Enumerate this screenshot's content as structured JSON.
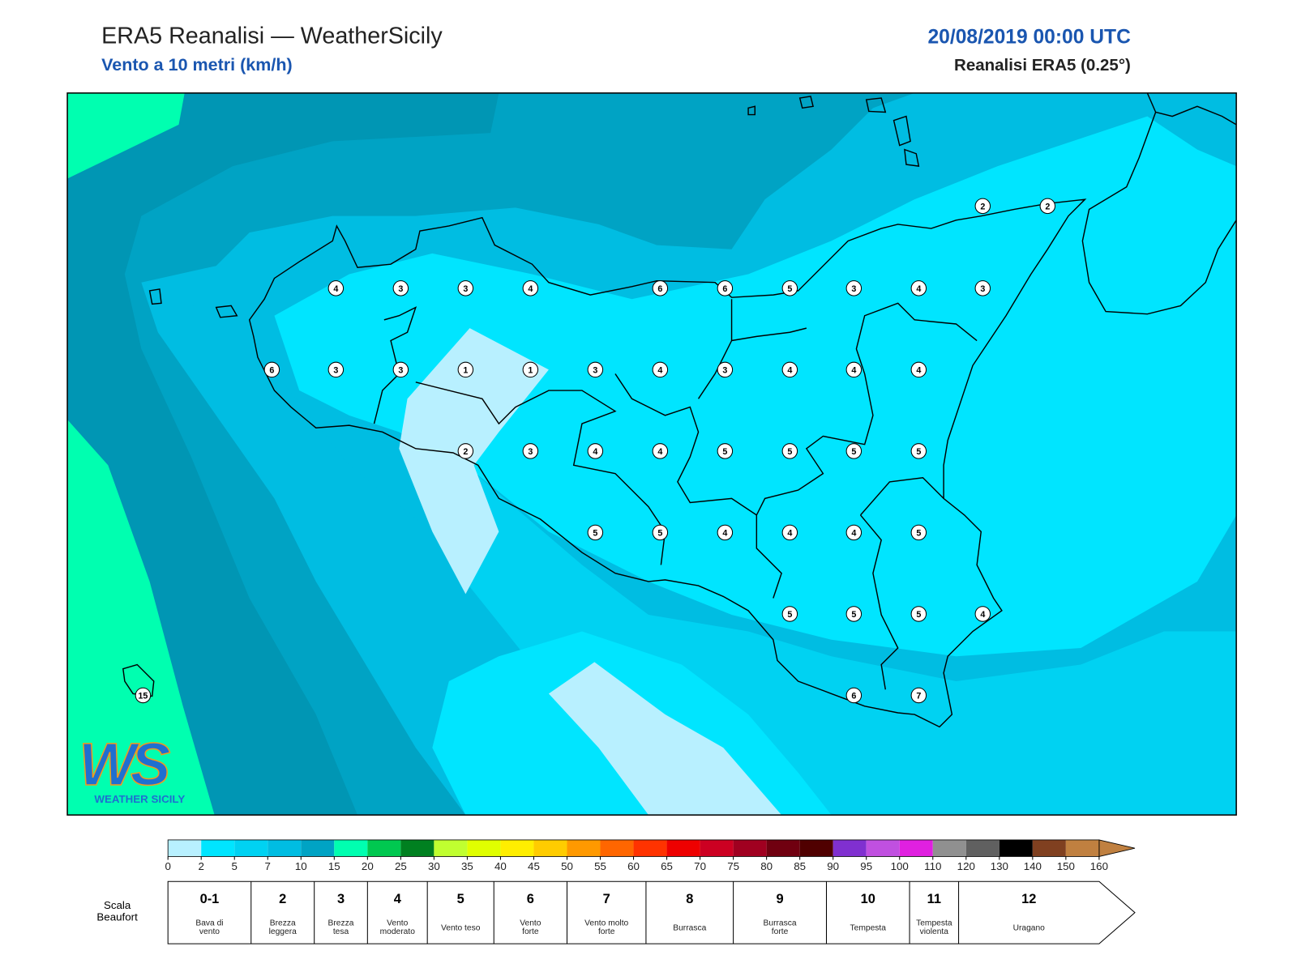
{
  "header": {
    "title": "ERA5 Reanalisi — WeatherSicily",
    "subtitle": "Vento a 10 metri (km/h)",
    "datetime": "20/08/2019 00:00 UTC",
    "source": "Reanalisi ERA5 (0.25°)"
  },
  "stations": [
    2,
    2,
    4,
    3,
    3,
    4,
    6,
    6,
    5,
    3,
    4,
    3,
    6,
    3,
    3,
    1,
    1,
    3,
    4,
    3,
    4,
    4,
    4,
    2,
    3,
    4,
    4,
    5,
    5,
    5,
    5,
    5,
    5,
    4,
    4,
    4,
    5,
    5,
    5,
    5,
    4,
    6,
    7,
    15
  ],
  "colorbar": {
    "ticks": [
      0,
      2,
      5,
      7,
      10,
      15,
      20,
      25,
      30,
      35,
      40,
      45,
      50,
      55,
      60,
      65,
      70,
      75,
      80,
      85,
      90,
      95,
      100,
      110,
      120,
      130,
      140,
      150,
      160
    ],
    "colors": [
      "#b8f0ff",
      "#00e5ff",
      "#00d2f2",
      "#00bde2",
      "#00a3c4",
      "#00ffb0",
      "#00c850",
      "#008020",
      "#c0ff30",
      "#e0ff00",
      "#ffee00",
      "#ffcc00",
      "#ff9900",
      "#ff6600",
      "#ff3300",
      "#ee0000",
      "#cc0022",
      "#a00020",
      "#700010",
      "#500000",
      "#8030d0",
      "#c050e0",
      "#e020e0",
      "#909090",
      "#606060",
      "#000000",
      "#804020",
      "#c08040"
    ]
  },
  "beaufort": {
    "label": [
      "Scala",
      "Beaufort"
    ],
    "levels": [
      {
        "force": "0-1",
        "description": [
          "Bava di",
          "vento"
        ]
      },
      {
        "force": "2",
        "description": [
          "Brezza",
          "leggera"
        ]
      },
      {
        "force": "3",
        "description": [
          "Brezza",
          "tesa"
        ]
      },
      {
        "force": "4",
        "description": [
          "Vento",
          "moderato"
        ]
      },
      {
        "force": "5",
        "description": [
          "Vento teso"
        ]
      },
      {
        "force": "6",
        "description": [
          "Vento",
          "forte"
        ]
      },
      {
        "force": "7",
        "description": [
          "Vento molto",
          "forte"
        ]
      },
      {
        "force": "8",
        "description": [
          "Burrasca"
        ]
      },
      {
        "force": "9",
        "description": [
          "Burrasca",
          "forte"
        ]
      },
      {
        "force": "10",
        "description": [
          "Tempesta"
        ]
      },
      {
        "force": "11",
        "description": [
          "Tempesta",
          "violenta"
        ]
      },
      {
        "force": "12",
        "description": [
          "Uragano"
        ]
      }
    ]
  },
  "logo": {
    "mark": "WS",
    "name": "WEATHER SICILY"
  }
}
